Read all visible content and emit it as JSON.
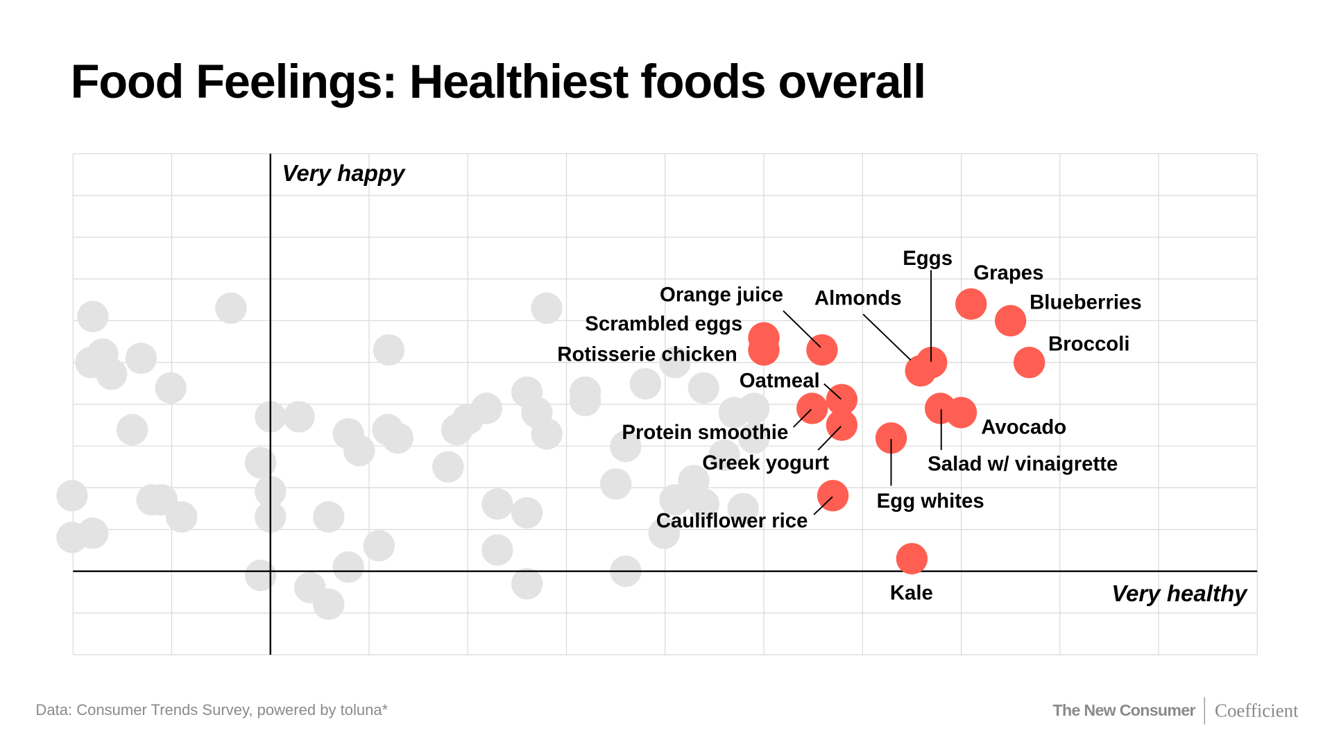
{
  "title": "Food Feelings: Healthiest foods overall",
  "footer": {
    "source": "Data: Consumer Trends Survey, powered by toluna*",
    "brand_1": "The New Consumer",
    "brand_2": "Coefficient"
  },
  "colors": {
    "highlight": "#ff5f52",
    "other": "#e3e3e3",
    "grid": "#d9d9d9",
    "axis": "#000000"
  },
  "chart_data": {
    "type": "scatter",
    "title": "Food Feelings: Healthiest foods overall",
    "xlabel": "Very healthy",
    "ylabel": "Very happy",
    "xlim": [
      -2,
      10
    ],
    "ylim": [
      -2,
      10
    ],
    "grid": true,
    "highlighted": [
      {
        "name": "Grapes",
        "x": 7.1,
        "y": 6.4
      },
      {
        "name": "Blueberries",
        "x": 7.5,
        "y": 6.0
      },
      {
        "name": "Broccoli",
        "x": 7.69,
        "y": 5.0
      },
      {
        "name": "Eggs",
        "x": 6.7,
        "y": 5.0
      },
      {
        "name": "Almonds",
        "x": 6.59,
        "y": 4.8
      },
      {
        "name": "Orange juice",
        "x": 5.59,
        "y": 5.3
      },
      {
        "name": "Scrambled eggs",
        "x": 5.0,
        "y": 5.59
      },
      {
        "name": "Rotisserie chicken",
        "x": 5.0,
        "y": 5.3
      },
      {
        "name": "Oatmeal",
        "x": 5.79,
        "y": 4.11
      },
      {
        "name": "Protein smoothie",
        "x": 5.49,
        "y": 3.9
      },
      {
        "name": "Greek yogurt",
        "x": 5.79,
        "y": 3.5
      },
      {
        "name": "Avocado",
        "x": 7.0,
        "y": 3.8
      },
      {
        "name": "Salad w/ vinaigrette",
        "x": 6.79,
        "y": 3.9
      },
      {
        "name": "Egg whites",
        "x": 6.29,
        "y": 3.19
      },
      {
        "name": "Cauliflower rice",
        "x": 5.7,
        "y": 1.81
      },
      {
        "name": "Kale",
        "x": 6.5,
        "y": 0.3
      }
    ],
    "others": [
      [
        -1.8,
        6.1
      ],
      [
        -0.4,
        6.3
      ],
      [
        2.8,
        6.3
      ],
      [
        -1.7,
        5.2
      ],
      [
        -1.82,
        5.0
      ],
      [
        -1.61,
        4.72
      ],
      [
        -1.31,
        5.1
      ],
      [
        -1.01,
        4.39
      ],
      [
        1.2,
        5.3
      ],
      [
        -1.4,
        3.39
      ],
      [
        0,
        3.7
      ],
      [
        0.29,
        3.7
      ],
      [
        0.79,
        3.29
      ],
      [
        0.9,
        2.89
      ],
      [
        1.19,
        3.39
      ],
      [
        1.29,
        3.19
      ],
      [
        1.89,
        3.39
      ],
      [
        2.0,
        3.64
      ],
      [
        2.19,
        3.9
      ],
      [
        2.6,
        4.29
      ],
      [
        2.7,
        3.8
      ],
      [
        2.8,
        3.29
      ],
      [
        3.19,
        4.29
      ],
      [
        3.19,
        4.09
      ],
      [
        3.8,
        4.49
      ],
      [
        4.1,
        5.0
      ],
      [
        4.39,
        4.39
      ],
      [
        4.7,
        3.8
      ],
      [
        4.9,
        3.9
      ],
      [
        4.6,
        2.78
      ],
      [
        4.9,
        3.19
      ],
      [
        3.6,
        2.99
      ],
      [
        -0.1,
        2.6
      ],
      [
        1.8,
        2.5
      ],
      [
        0,
        1.91
      ],
      [
        -2.01,
        1.81
      ],
      [
        -1.2,
        1.71
      ],
      [
        -1.1,
        1.71
      ],
      [
        -0.9,
        1.3
      ],
      [
        0,
        1.3
      ],
      [
        0.59,
        1.3
      ],
      [
        2.3,
        1.61
      ],
      [
        2.6,
        1.4
      ],
      [
        3.5,
        2.09
      ],
      [
        4.1,
        1.71
      ],
      [
        4.29,
        2.17
      ],
      [
        4.39,
        1.61
      ],
      [
        4.79,
        1.5
      ],
      [
        3.99,
        0.91
      ],
      [
        -2.01,
        0.81
      ],
      [
        -1.8,
        0.91
      ],
      [
        1.1,
        0.61
      ],
      [
        2.3,
        0.51
      ],
      [
        0.79,
        0.1
      ],
      [
        -0.1,
        -0.1
      ],
      [
        0.4,
        -0.39
      ],
      [
        0.59,
        -0.79
      ],
      [
        2.6,
        -0.3
      ],
      [
        3.6,
        0
      ]
    ]
  }
}
